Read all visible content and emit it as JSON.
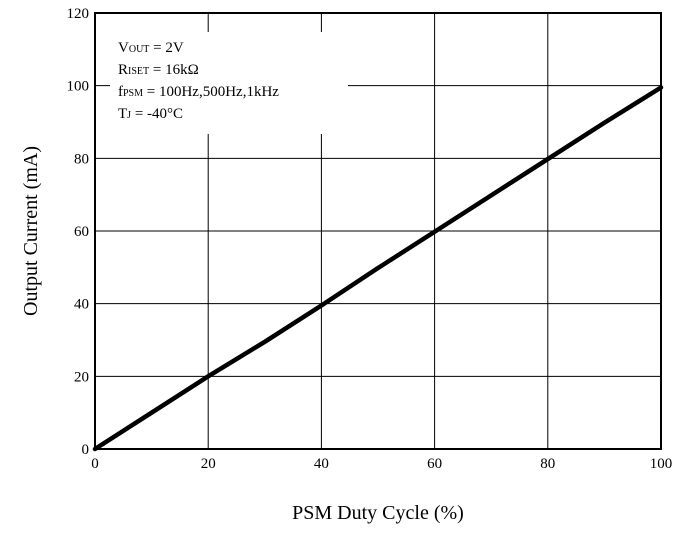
{
  "chart_data": {
    "type": "line",
    "title": "",
    "xlabel": "PSM Duty Cycle (%)",
    "ylabel": "Output Current (mA)",
    "xlim": [
      0,
      100
    ],
    "ylim": [
      0,
      120
    ],
    "x_ticks": [
      0,
      20,
      40,
      60,
      80,
      100
    ],
    "y_ticks": [
      0,
      20,
      40,
      60,
      80,
      100,
      120
    ],
    "grid": true,
    "series": [
      {
        "x": [
          0,
          10,
          20,
          30,
          40,
          50,
          60,
          70,
          80,
          90,
          100
        ],
        "y": [
          0,
          10,
          20,
          29.5,
          39.5,
          49.8,
          59.8,
          69.8,
          79.8,
          89.8,
          99.5
        ]
      }
    ],
    "annotations": [
      {
        "main": "V",
        "sub": "OUT",
        "rest": " = 2V"
      },
      {
        "main": "R",
        "sub": "ISET",
        "rest": " = 16kΩ"
      },
      {
        "main": "f",
        "sub": "PSM",
        "rest": " = 100Hz,500Hz,1kHz"
      },
      {
        "main": "T",
        "sub": "J",
        "rest": " = -40°C"
      }
    ],
    "colors": {
      "line": "#000000",
      "grid": "#000000",
      "background": "#ffffff"
    }
  }
}
